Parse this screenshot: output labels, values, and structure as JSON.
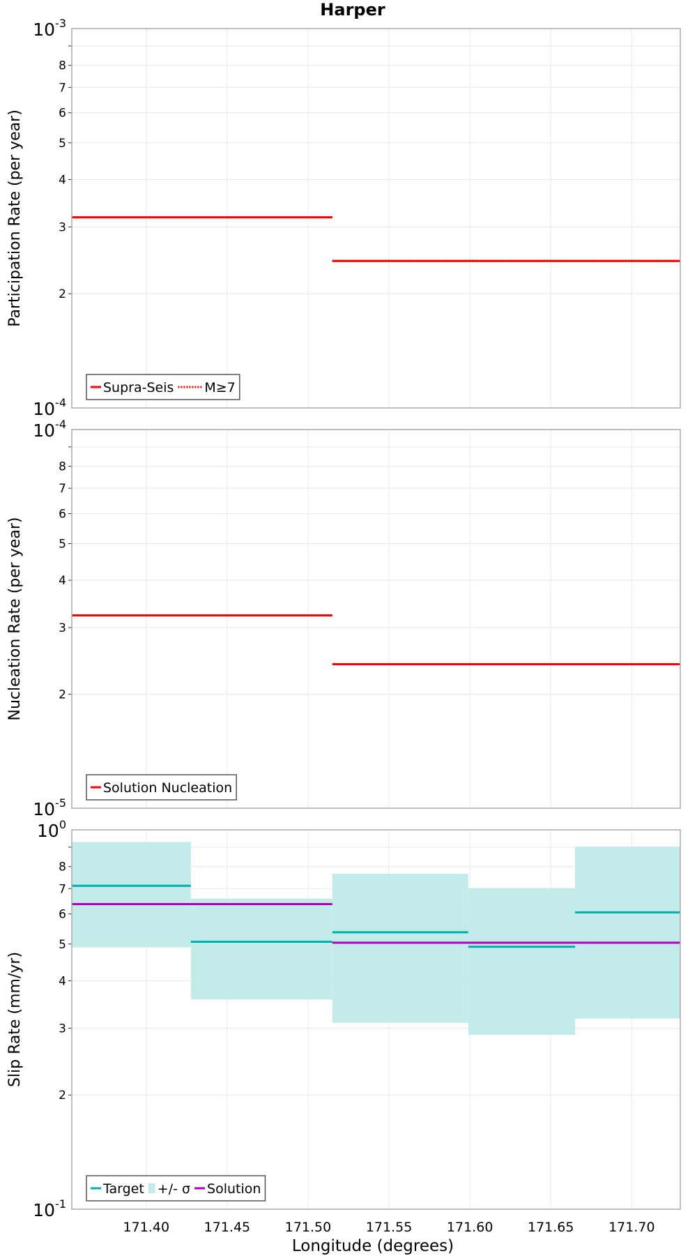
{
  "chart_data": {
    "title": "Harper",
    "xlabel": "Longitude (degrees)",
    "xlim": [
      171.354,
      171.73
    ],
    "xticks": [
      171.4,
      171.45,
      171.5,
      171.55,
      171.6,
      171.65,
      171.7
    ],
    "xtick_labels": [
      "171.40",
      "171.45",
      "171.50",
      "171.55",
      "171.60",
      "171.65",
      "171.70"
    ],
    "segment_edges": [
      171.354,
      171.4276,
      171.515,
      171.599,
      171.665,
      171.73
    ],
    "grid": true,
    "panels": [
      {
        "type": "line",
        "ylabel": "Participation Rate (per year)",
        "yscale": "log",
        "ylim": [
          0.0001,
          0.001
        ],
        "top_label": {
          "base": "10",
          "exp": "-3"
        },
        "bottom_label": {
          "base": "10",
          "exp": "-4"
        },
        "minor_ticks": [
          0.0002,
          0.0003,
          0.0004,
          0.0005,
          0.0006,
          0.0007,
          0.0008,
          0.0009
        ],
        "minor_tick_labels": [
          "2",
          "3",
          "4",
          "5",
          "6",
          "7",
          "8",
          ""
        ],
        "legend_position": "bottom-left",
        "series": [
          {
            "name": "Supra-Seis",
            "style": "solid",
            "color": "#ff0000",
            "steps": [
              [
                171.354,
                171.515,
                0.000318
              ],
              [
                171.515,
                171.73,
                0.000244
              ]
            ]
          },
          {
            "name": "M≥7",
            "style": "dotted",
            "color": "#ff0000",
            "steps": [
              [
                171.354,
                171.515,
                0.000318
              ],
              [
                171.515,
                171.73,
                0.000244
              ]
            ]
          }
        ]
      },
      {
        "type": "line",
        "ylabel": "Nucleation Rate (per year)",
        "yscale": "log",
        "ylim": [
          1e-05,
          0.0001
        ],
        "top_label": {
          "base": "10",
          "exp": "-4"
        },
        "bottom_label": {
          "base": "10",
          "exp": "-5"
        },
        "minor_ticks": [
          2e-05,
          3e-05,
          4e-05,
          5e-05,
          6e-05,
          7e-05,
          8e-05,
          9e-05
        ],
        "minor_tick_labels": [
          "2",
          "3",
          "4",
          "5",
          "6",
          "7",
          "8",
          ""
        ],
        "legend_position": "bottom-left",
        "series": [
          {
            "name": "Solution Nucleation",
            "style": "solid",
            "color": "#ff0000",
            "steps": [
              [
                171.354,
                171.515,
                3.23e-05
              ],
              [
                171.515,
                171.73,
                2.4e-05
              ]
            ]
          }
        ]
      },
      {
        "type": "line",
        "ylabel": "Slip Rate (mm/yr)",
        "yscale": "log",
        "ylim": [
          0.1,
          1
        ],
        "top_label": {
          "base": "10",
          "exp": "0"
        },
        "bottom_label": {
          "base": "10",
          "exp": "-1"
        },
        "minor_ticks": [
          0.2,
          0.3,
          0.4,
          0.5,
          0.6,
          0.7,
          0.8,
          0.9
        ],
        "minor_tick_labels": [
          "2",
          "3",
          "4",
          "5",
          "6",
          "7",
          "8",
          ""
        ],
        "legend_position": "bottom-left",
        "bands": {
          "name": "+/- σ",
          "color": "#c2ebea",
          "steps": [
            [
              171.354,
              171.4276,
              0.49,
              0.929
            ],
            [
              171.4276,
              171.515,
              0.357,
              0.659
            ],
            [
              171.515,
              171.599,
              0.31,
              0.766
            ],
            [
              171.599,
              171.665,
              0.288,
              0.702
            ],
            [
              171.665,
              171.73,
              0.318,
              0.903
            ]
          ]
        },
        "series": [
          {
            "name": "Target",
            "style": "solid",
            "color": "#00b0b0",
            "steps": [
              [
                171.354,
                171.4276,
                0.712
              ],
              [
                171.4276,
                171.515,
                0.507
              ],
              [
                171.515,
                171.599,
                0.537
              ],
              [
                171.599,
                171.665,
                0.492
              ],
              [
                171.665,
                171.73,
                0.606
              ]
            ]
          },
          {
            "name": "Solution",
            "style": "solid",
            "color": "#b000b8",
            "steps": [
              [
                171.354,
                171.515,
                0.637
              ],
              [
                171.515,
                171.73,
                0.504
              ]
            ]
          }
        ],
        "legend_order": [
          "Target",
          "+/- σ",
          "Solution"
        ]
      }
    ]
  }
}
